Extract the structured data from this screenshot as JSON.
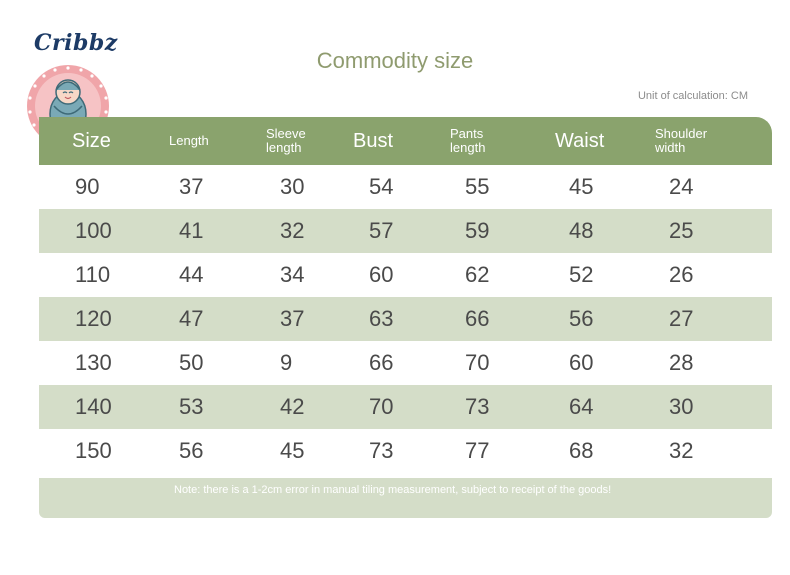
{
  "brand": {
    "name": "Cribbz",
    "colors": {
      "ring": "#f0a5a9",
      "ring_dots": "#ffffff",
      "baby_body": "#7aa9b6",
      "face": "#f7d8c7"
    }
  },
  "title": "Commodity size",
  "unit_note": "Unit of calculation: CM",
  "colors": {
    "header_bg": "#8aa36d",
    "stripe_bg": "#d4ddc8",
    "title": "#8f9b6f",
    "text": "#4a4a4a"
  },
  "table": {
    "headers": [
      "Size",
      "Length",
      "Sleeve length",
      "Bust",
      "Pants length",
      "Waist",
      "Shoulder width"
    ],
    "rows": [
      [
        "90",
        "37",
        "30",
        "54",
        "55",
        "45",
        "24"
      ],
      [
        "100",
        "41",
        "32",
        "57",
        "59",
        "48",
        "25"
      ],
      [
        "110",
        "44",
        "34",
        "60",
        "62",
        "52",
        "26"
      ],
      [
        "120",
        "47",
        "37",
        "63",
        "66",
        "56",
        "27"
      ],
      [
        "130",
        "50",
        "9",
        "66",
        "70",
        "60",
        "28"
      ],
      [
        "140",
        "53",
        "42",
        "70",
        "73",
        "64",
        "30"
      ],
      [
        "150",
        "56",
        "45",
        "73",
        "77",
        "68",
        "32"
      ]
    ]
  },
  "note": "Note: there is a 1-2cm error in manual tiling measurement, subject to receipt of the goods!"
}
